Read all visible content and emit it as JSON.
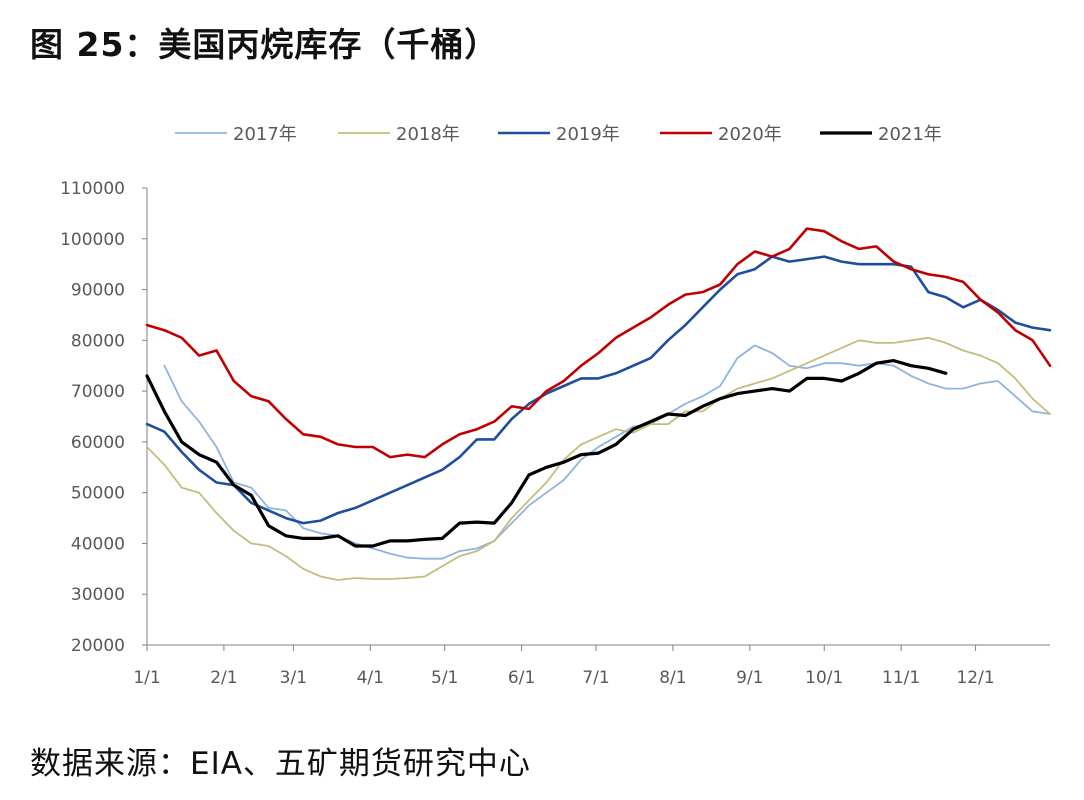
{
  "title": "图 25：美国丙烷库存（千桶）",
  "source": "数据来源：EIA、五矿期货研究中心",
  "chart_data": {
    "type": "line",
    "title": "图 25：美国丙烷库存（千桶）",
    "xlabel": "",
    "ylabel": "",
    "ylim": [
      20000,
      110000
    ],
    "yticks": [
      "20000",
      "30000",
      "40000",
      "50000",
      "60000",
      "70000",
      "80000",
      "90000",
      "100000",
      "110000"
    ],
    "xticks": [
      "1/1",
      "2/1",
      "3/1",
      "4/1",
      "5/1",
      "6/1",
      "7/1",
      "8/1",
      "9/1",
      "10/1",
      "11/1",
      "12/1"
    ],
    "grid": false,
    "legend_position": "top",
    "x_unit": "week of year (1 = 1/1, 53 = end of December)",
    "series": [
      {
        "name": "2017年",
        "color": "#8eb4e3",
        "width": 1.8,
        "x": [
          2,
          3,
          4,
          5,
          6,
          7,
          8,
          9,
          10,
          11,
          12,
          13,
          14,
          15,
          16,
          17,
          18,
          19,
          20,
          21,
          22,
          23,
          24,
          25,
          26,
          27,
          28,
          29,
          30,
          31,
          32,
          33,
          34,
          35,
          36,
          37,
          38,
          39,
          40,
          41,
          42,
          43,
          44,
          45,
          46,
          47,
          48,
          49,
          50,
          51,
          52,
          53
        ],
        "values": [
          75000,
          68000,
          64000,
          59000,
          52000,
          51000,
          47000,
          46500,
          43000,
          42000,
          41500,
          40000,
          39000,
          38000,
          37200,
          37000,
          37000,
          38500,
          39000,
          40500,
          44000,
          47500,
          50000,
          52500,
          56500,
          59000,
          61000,
          63000,
          63500,
          65500,
          67500,
          69000,
          71000,
          76500,
          79000,
          77500,
          75000,
          74500,
          75500,
          75500,
          75000,
          75500,
          75000,
          73000,
          71500,
          70500,
          70500,
          71500,
          72000,
          69000,
          66000,
          65500
        ]
      },
      {
        "name": "2018年",
        "color": "#c4bd7a",
        "width": 1.8,
        "x": [
          1,
          2,
          3,
          4,
          5,
          6,
          7,
          8,
          9,
          10,
          11,
          12,
          13,
          14,
          15,
          16,
          17,
          18,
          19,
          20,
          21,
          22,
          23,
          24,
          25,
          26,
          27,
          28,
          29,
          30,
          31,
          32,
          33,
          34,
          35,
          36,
          37,
          38,
          39,
          40,
          41,
          42,
          43,
          44,
          45,
          46,
          47,
          48,
          49,
          50,
          51,
          52,
          53
        ],
        "values": [
          59000,
          55500,
          51000,
          50000,
          46000,
          42500,
          40000,
          39500,
          37500,
          35000,
          33500,
          32800,
          33200,
          33000,
          33000,
          33200,
          33500,
          35500,
          37500,
          38500,
          40500,
          45000,
          48500,
          52000,
          56500,
          59500,
          61000,
          62500,
          61800,
          63500,
          63500,
          66000,
          66000,
          68500,
          70500,
          71500,
          72500,
          74000,
          75500,
          77000,
          78500,
          80000,
          79500,
          79500,
          80000,
          80500,
          79500,
          78000,
          77000,
          75500,
          72500,
          68500,
          65500
        ]
      },
      {
        "name": "2019年",
        "color": "#1f4e9c",
        "width": 2.6,
        "x": [
          1,
          2,
          3,
          4,
          5,
          6,
          7,
          8,
          9,
          10,
          11,
          12,
          13,
          14,
          15,
          16,
          17,
          18,
          19,
          20,
          21,
          22,
          23,
          24,
          25,
          26,
          27,
          28,
          29,
          30,
          31,
          32,
          33,
          34,
          35,
          36,
          37,
          38,
          39,
          40,
          41,
          42,
          43,
          44,
          45,
          46,
          47,
          48,
          49,
          50,
          51,
          52,
          53
        ],
        "values": [
          63500,
          62000,
          58000,
          54500,
          52000,
          51500,
          48000,
          46500,
          45000,
          44000,
          44500,
          46000,
          47000,
          48500,
          50000,
          51500,
          53000,
          54500,
          57000,
          60500,
          60500,
          64500,
          67500,
          69500,
          71000,
          72500,
          72500,
          73500,
          75000,
          76500,
          80000,
          83000,
          86500,
          90000,
          93000,
          94000,
          96500,
          95500,
          96000,
          96500,
          95500,
          95000,
          95000,
          95000,
          94500,
          89500,
          88500,
          86500,
          88000,
          86000,
          83500,
          82500,
          82000
        ]
      },
      {
        "name": "2020年",
        "color": "#c00000",
        "width": 2.6,
        "x": [
          1,
          2,
          3,
          4,
          5,
          6,
          7,
          8,
          9,
          10,
          11,
          12,
          13,
          14,
          15,
          16,
          17,
          18,
          19,
          20,
          21,
          22,
          23,
          24,
          25,
          26,
          27,
          28,
          29,
          30,
          31,
          32,
          33,
          34,
          35,
          36,
          37,
          38,
          39,
          40,
          41,
          42,
          43,
          44,
          45,
          46,
          47,
          48,
          49,
          50,
          51,
          52,
          53
        ],
        "values": [
          83000,
          82000,
          80500,
          77000,
          78000,
          72000,
          69000,
          68000,
          64500,
          61500,
          61000,
          59500,
          59000,
          59000,
          57000,
          57500,
          57000,
          59500,
          61500,
          62500,
          64000,
          67000,
          66500,
          70000,
          72000,
          75000,
          77500,
          80500,
          82500,
          84500,
          87000,
          89000,
          89500,
          91000,
          95000,
          97500,
          96500,
          98000,
          102000,
          101500,
          99500,
          98000,
          98500,
          95500,
          94000,
          93000,
          92500,
          91500,
          88000,
          85500,
          82000,
          80000,
          75000
        ]
      },
      {
        "name": "2021年",
        "color": "#000000",
        "width": 3.2,
        "x": [
          1,
          2,
          3,
          4,
          5,
          6,
          7,
          8,
          9,
          10,
          11,
          12,
          13,
          14,
          15,
          16,
          17,
          18,
          19,
          20,
          21,
          22,
          23,
          24,
          25,
          26,
          27,
          28,
          29,
          30,
          31,
          32,
          33,
          34,
          35,
          36,
          37,
          38,
          39,
          40,
          41,
          42,
          43,
          44,
          45,
          46,
          47
        ],
        "values": [
          73000,
          66000,
          60000,
          57500,
          56000,
          51500,
          49500,
          43500,
          41500,
          41000,
          41000,
          41500,
          39500,
          39500,
          40500,
          40500,
          40800,
          41000,
          44000,
          44200,
          44000,
          48000,
          53500,
          55000,
          56000,
          57500,
          57800,
          59500,
          62500,
          64000,
          65500,
          65200,
          67000,
          68500,
          69500,
          70000,
          70500,
          70000,
          72500,
          72500,
          72000,
          73500,
          75500,
          76000,
          75000,
          74500,
          73500
        ]
      }
    ]
  }
}
